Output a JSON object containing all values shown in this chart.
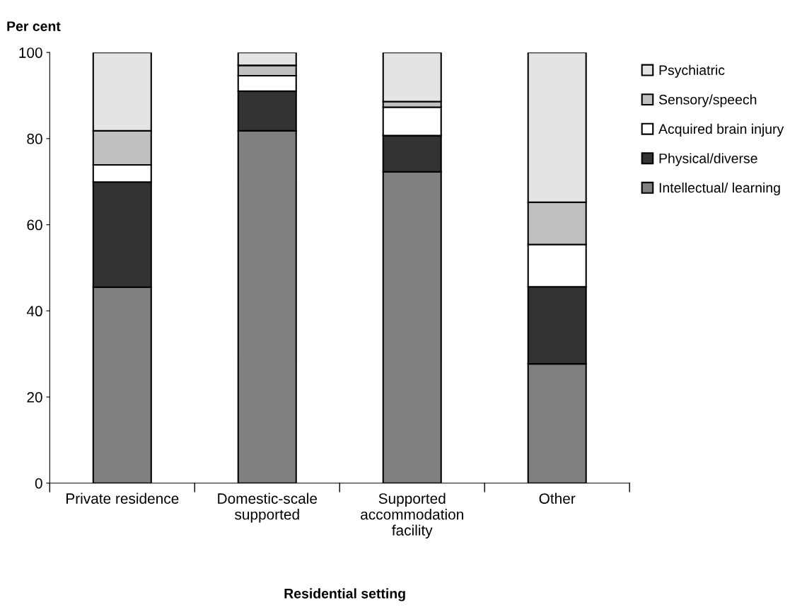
{
  "chart_data": {
    "type": "bar",
    "stacked": true,
    "ylabel": "Per cent",
    "xlabel": "Residential setting",
    "categories": [
      "Private residence",
      "Domestic-scale\nsupported",
      "Supported\naccommodation\nfacility",
      "Other"
    ],
    "series": [
      {
        "name": "Intellectual/ learning",
        "color": "#808080",
        "values": [
          45.5,
          81.8,
          72.3,
          27.7
        ]
      },
      {
        "name": "Physical/diverse",
        "color": "#333333",
        "values": [
          24.4,
          9.2,
          8.4,
          17.9
        ]
      },
      {
        "name": "Acquired brain injury",
        "color": "#ffffff",
        "values": [
          4.0,
          3.6,
          6.6,
          9.8
        ]
      },
      {
        "name": "Sensory/speech",
        "color": "#c0c0c0",
        "values": [
          7.9,
          2.4,
          1.3,
          9.8
        ]
      },
      {
        "name": "Psychiatric",
        "color": "#e4e4e4",
        "values": [
          18.2,
          3.0,
          11.4,
          34.8
        ]
      }
    ],
    "ylim": [
      0,
      100
    ],
    "yticks": [
      0,
      20,
      40,
      60,
      80,
      100
    ],
    "grid": false,
    "legend": "right"
  }
}
